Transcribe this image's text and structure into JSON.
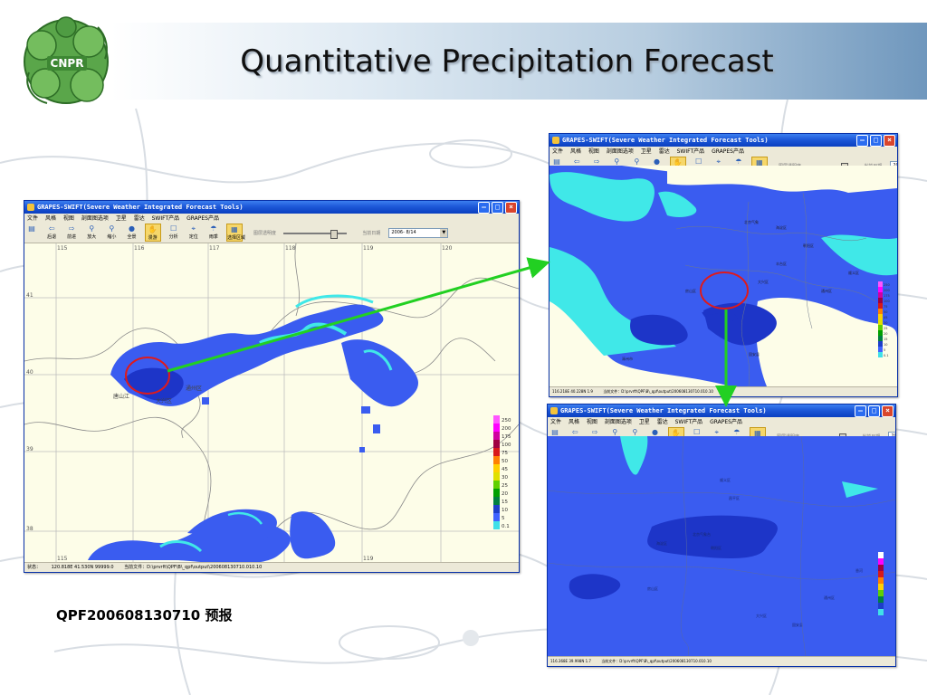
{
  "slide": {
    "title": "Quantitative Precipitation Forecast",
    "caption": "QPF200608130710 预报",
    "logo_text": "CNPR"
  },
  "app": {
    "window_title": "GRAPES-SWIFT(Severe Weather Integrated Forecast Tools)",
    "menu": [
      "文件",
      "风格",
      "视图",
      "剖面图选项",
      "卫星",
      "雷达",
      "SWIFT产品",
      "GRAPES产品"
    ],
    "tools": [
      "后退",
      "前进",
      "放大",
      "缩小",
      "全景",
      "漫游",
      "分析",
      "定位",
      "雨季",
      "选择区域"
    ],
    "opacity_label": "图层透明度",
    "date_label": "当前日期",
    "date_value": "2006- 8/14"
  },
  "windows": {
    "main": {
      "status_label": "状态：",
      "coords": "120.818E 41.530N 99999.0",
      "file": "当前文件：D:\\prvrft\\QPF\\B\\_qpf\\output\\200608130710.010.10"
    },
    "zoom1": {
      "coords": "116.218E 40.228N 1.9",
      "file": "当前文件：D:\\prvrft\\QPF\\B\\_qpf\\output\\200608130710.010.10"
    },
    "zoom2": {
      "coords": "116.368E 39.998N 1.7",
      "file": "当前文件：D:\\prvrft\\QPF\\B\\_qpf\\output\\200608130710.010.10"
    }
  },
  "map": {
    "lon_labels": [
      "115",
      "116",
      "117",
      "118",
      "119",
      "120"
    ],
    "lat_labels": [
      "41",
      "40",
      "39",
      "38"
    ],
    "cities": [
      "唐山江",
      "大兴区",
      "通州区"
    ],
    "legend": [
      "250",
      "200",
      "175",
      "100",
      "75",
      "50",
      "45",
      "30",
      "25",
      "20",
      "15",
      "10",
      "5",
      "0.1"
    ],
    "legend_colors": [
      "#ff55ff",
      "#ff00ff",
      "#d000a0",
      "#a00040",
      "#d81818",
      "#ff8000",
      "#ffd000",
      "#e0e000",
      "#60d000",
      "#00a000",
      "#008040",
      "#1d3ec8",
      "#3f63ff",
      "#40e0e8"
    ]
  },
  "colors": {
    "rain_light": "#40e8e8",
    "rain_mid": "#3a5cf0",
    "rain_heavy": "#1d35c8",
    "map_bg": "#fdfde8",
    "arrow": "#22d022",
    "highlight": "#e01a1a"
  }
}
